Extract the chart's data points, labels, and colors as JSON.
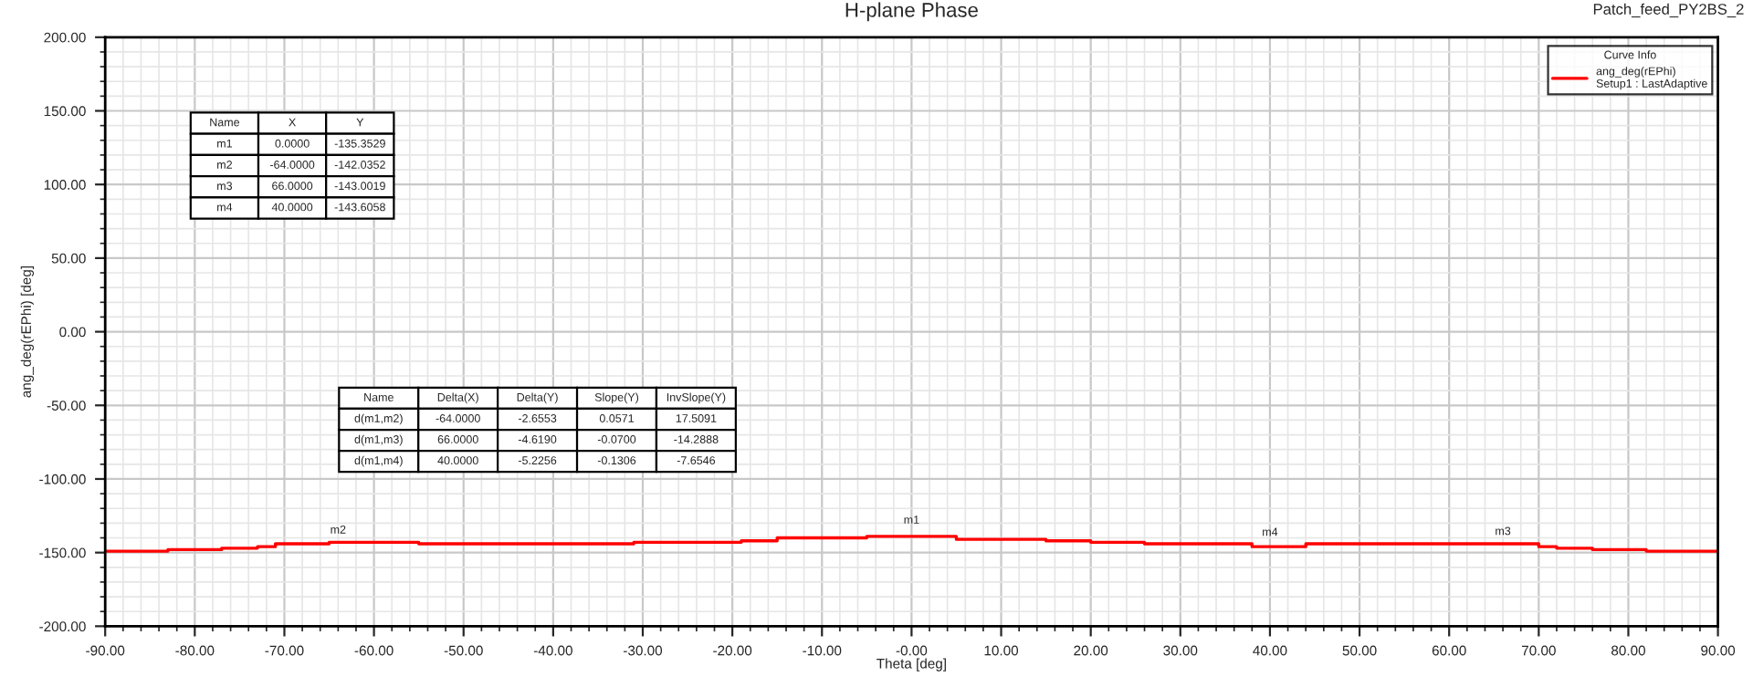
{
  "chart_data": {
    "type": "step",
    "title": "H-plane Phase",
    "subtitle": "Patch_feed_PY2BS_2",
    "xlabel": "Theta [deg]",
    "ylabel": "ang_deg(rEPhi) [deg]",
    "legend_title": "Curve Info",
    "legend": "top right",
    "grid": true,
    "x": [
      -90,
      -83,
      -77,
      -73,
      -71,
      -65,
      -55,
      -31,
      -19,
      -15,
      -5,
      5,
      15,
      20,
      26,
      38,
      44,
      70,
      72,
      76,
      82,
      90
    ],
    "series": [
      {
        "name": "ang_deg(rEPhi)\nSetup1 : LastAdaptive",
        "color": "#ff0000",
        "values": [
          -149,
          -148,
          -147,
          -146,
          -144,
          -143,
          -144,
          -143,
          -142,
          -140,
          -139,
          -141,
          -142,
          -143,
          -144,
          -146,
          -144,
          -146,
          -147,
          -148,
          -149,
          -149
        ]
      }
    ],
    "xlim": [
      -90,
      90
    ],
    "ylim": [
      -200,
      200
    ],
    "xticks": [
      {
        "value": -90,
        "label": "-90.00"
      },
      {
        "value": -80,
        "label": "-80.00"
      },
      {
        "value": -70,
        "label": "-70.00"
      },
      {
        "value": -60,
        "label": "-60.00"
      },
      {
        "value": -50,
        "label": "-50.00"
      },
      {
        "value": -40,
        "label": "-40.00"
      },
      {
        "value": -30,
        "label": "-30.00"
      },
      {
        "value": -20,
        "label": "-20.00"
      },
      {
        "value": -10,
        "label": "-10.00"
      },
      {
        "value": 0,
        "label": "-0.00"
      },
      {
        "value": 10,
        "label": "10.00"
      },
      {
        "value": 20,
        "label": "20.00"
      },
      {
        "value": 30,
        "label": "30.00"
      },
      {
        "value": 40,
        "label": "40.00"
      },
      {
        "value": 50,
        "label": "50.00"
      },
      {
        "value": 60,
        "label": "60.00"
      },
      {
        "value": 70,
        "label": "70.00"
      },
      {
        "value": 80,
        "label": "80.00"
      },
      {
        "value": 90,
        "label": "90.00"
      }
    ],
    "yticks": [
      {
        "value": -200,
        "label": "-200.00"
      },
      {
        "value": -150,
        "label": "-150.00"
      },
      {
        "value": -100,
        "label": "-100.00"
      },
      {
        "value": -50,
        "label": "-50.00"
      },
      {
        "value": 0,
        "label": "0.00"
      },
      {
        "value": 50,
        "label": "50.00"
      },
      {
        "value": 100,
        "label": "100.00"
      },
      {
        "value": 150,
        "label": "150.00"
      },
      {
        "value": 200,
        "label": "200.00"
      }
    ],
    "annotations": [
      {
        "text": "m1",
        "x": 0,
        "y": -135.3529
      },
      {
        "text": "m2",
        "x": -64,
        "y": -142.0352
      },
      {
        "text": "m3",
        "x": 66,
        "y": -143.0019
      },
      {
        "text": "m4",
        "x": 40,
        "y": -143.6058
      },
      "Name\tX\tY",
      "m1\t0.0000\t-135.3529",
      "m2\t-64.0000\t-142.0352",
      "m3\t66.0000\t-143.0019",
      "m4\t40.0000\t-143.6058",
      "Name\tDelta(X)\tDelta(Y)\tSlope(Y)\tInvSlope(Y)",
      "d(m1,m2)\t-64.0000\t-2.6553\t0.0571\t17.5091",
      "d(m1,m3)\t66.0000\t-4.6190\t-0.0700\t-14.2888",
      "d(m1,m4)\t40.0000\t-5.2256\t-0.1306\t-7.6546"
    ]
  }
}
